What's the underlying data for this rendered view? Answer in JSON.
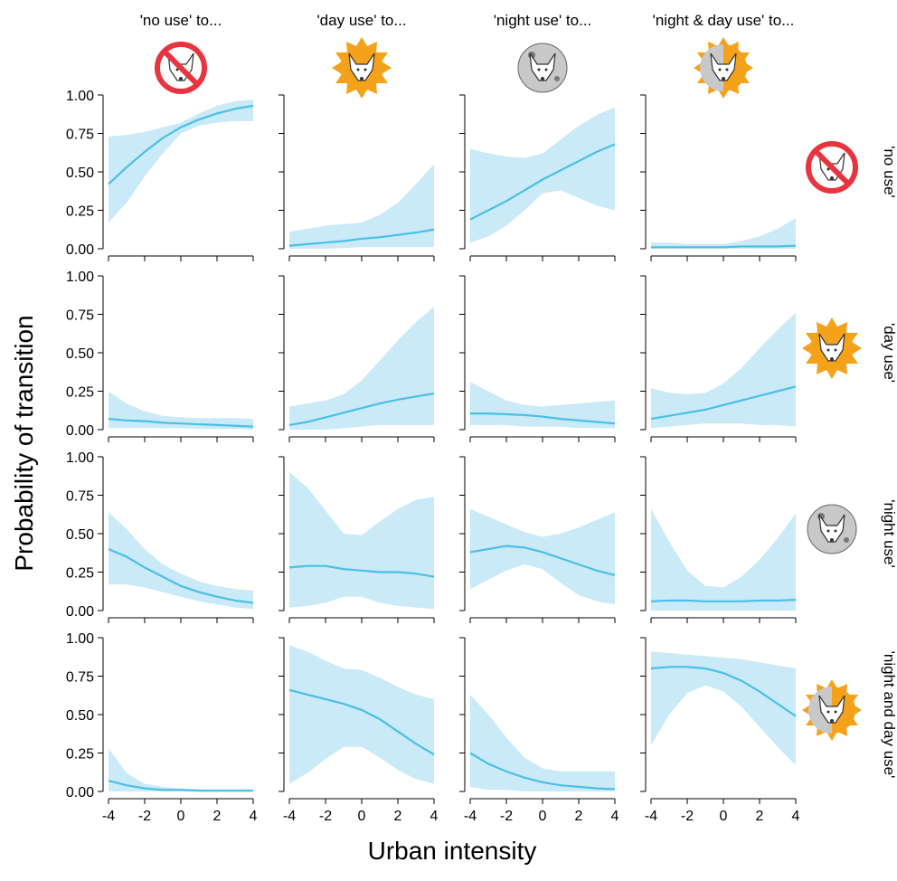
{
  "chart_data": {
    "type": "line",
    "x_label": "Urban intensity",
    "y_label": "Probability of transition",
    "column_titles": [
      "'no use' to...",
      "'day use' to...",
      "'night use' to...",
      "'night & day use' to..."
    ],
    "row_labels": [
      "'no use'",
      "'day use'",
      "'night use'",
      "'night and day use'"
    ],
    "xlim": [
      -4,
      4
    ],
    "xticks": [
      -4,
      -2,
      0,
      2,
      4
    ],
    "ylim": [
      0,
      1
    ],
    "yticks": [
      {
        "value": 0,
        "label": "0.00"
      },
      {
        "value": 0.25,
        "label": "0.25"
      },
      {
        "value": 0.5,
        "label": "0.50"
      },
      {
        "value": 0.75,
        "label": "0.75"
      },
      {
        "value": 1,
        "label": "1.00"
      }
    ],
    "color": "#4bbfe6",
    "band_color": "#c9eaf6",
    "x": [
      -4,
      -3,
      -2,
      -1,
      0,
      1,
      2,
      3,
      4
    ],
    "panels": [
      [
        {
          "values": [
            0.42,
            0.53,
            0.63,
            0.72,
            0.79,
            0.84,
            0.88,
            0.91,
            0.93
          ],
          "lower": [
            0.17,
            0.3,
            0.47,
            0.62,
            0.75,
            0.8,
            0.82,
            0.83,
            0.83
          ],
          "upper": [
            0.73,
            0.74,
            0.76,
            0.79,
            0.82,
            0.88,
            0.93,
            0.96,
            0.97
          ]
        },
        {
          "values": [
            0.02,
            0.03,
            0.04,
            0.05,
            0.065,
            0.075,
            0.09,
            0.105,
            0.125
          ],
          "lower": [
            0,
            0,
            0,
            0.005,
            0.01,
            0.01,
            0.01,
            0.01,
            0.01
          ],
          "upper": [
            0.11,
            0.13,
            0.15,
            0.16,
            0.17,
            0.22,
            0.3,
            0.42,
            0.55
          ]
        },
        {
          "values": [
            0.19,
            0.25,
            0.31,
            0.38,
            0.45,
            0.51,
            0.57,
            0.63,
            0.68
          ],
          "lower": [
            0.04,
            0.08,
            0.15,
            0.25,
            0.36,
            0.38,
            0.33,
            0.28,
            0.25
          ],
          "upper": [
            0.65,
            0.62,
            0.6,
            0.59,
            0.62,
            0.71,
            0.8,
            0.87,
            0.92
          ]
        },
        {
          "values": [
            0.01,
            0.01,
            0.01,
            0.01,
            0.01,
            0.015,
            0.015,
            0.015,
            0.02
          ],
          "lower": [
            0,
            0,
            0,
            0,
            0,
            0,
            0,
            0,
            0
          ],
          "upper": [
            0.04,
            0.04,
            0.03,
            0.03,
            0.03,
            0.05,
            0.08,
            0.13,
            0.2
          ]
        }
      ],
      [
        {
          "values": [
            0.07,
            0.06,
            0.055,
            0.045,
            0.04,
            0.035,
            0.03,
            0.025,
            0.02
          ],
          "lower": [
            0.01,
            0.01,
            0.01,
            0.01,
            0.01,
            0.005,
            0.005,
            0.005,
            0
          ],
          "upper": [
            0.25,
            0.17,
            0.12,
            0.09,
            0.08,
            0.075,
            0.075,
            0.075,
            0.07
          ]
        },
        {
          "values": [
            0.03,
            0.05,
            0.08,
            0.11,
            0.14,
            0.17,
            0.195,
            0.215,
            0.235
          ],
          "lower": [
            0,
            0,
            0,
            0.01,
            0.02,
            0.03,
            0.03,
            0.03,
            0.03
          ],
          "upper": [
            0.15,
            0.17,
            0.19,
            0.23,
            0.32,
            0.45,
            0.58,
            0.7,
            0.8
          ]
        },
        {
          "values": [
            0.105,
            0.105,
            0.1,
            0.095,
            0.085,
            0.07,
            0.06,
            0.05,
            0.04
          ],
          "lower": [
            0.03,
            0.03,
            0.03,
            0.02,
            0.02,
            0.02,
            0.01,
            0.01,
            0.01
          ],
          "upper": [
            0.31,
            0.25,
            0.19,
            0.16,
            0.15,
            0.16,
            0.17,
            0.18,
            0.19
          ]
        },
        {
          "values": [
            0.07,
            0.09,
            0.11,
            0.13,
            0.16,
            0.19,
            0.22,
            0.25,
            0.28
          ],
          "lower": [
            0.01,
            0.02,
            0.03,
            0.04,
            0.04,
            0.04,
            0.03,
            0.03,
            0.02
          ],
          "upper": [
            0.27,
            0.24,
            0.23,
            0.24,
            0.3,
            0.4,
            0.53,
            0.65,
            0.76
          ]
        }
      ],
      [
        {
          "values": [
            0.4,
            0.35,
            0.28,
            0.22,
            0.16,
            0.12,
            0.09,
            0.065,
            0.05
          ],
          "lower": [
            0.17,
            0.17,
            0.15,
            0.12,
            0.09,
            0.06,
            0.04,
            0.02,
            0.01
          ],
          "upper": [
            0.64,
            0.53,
            0.4,
            0.3,
            0.24,
            0.19,
            0.16,
            0.14,
            0.13
          ]
        },
        {
          "values": [
            0.28,
            0.29,
            0.29,
            0.27,
            0.26,
            0.25,
            0.25,
            0.24,
            0.22
          ],
          "lower": [
            0.02,
            0.03,
            0.05,
            0.09,
            0.09,
            0.05,
            0.03,
            0.02,
            0.01
          ],
          "upper": [
            0.9,
            0.8,
            0.65,
            0.5,
            0.49,
            0.58,
            0.66,
            0.72,
            0.74
          ]
        },
        {
          "values": [
            0.38,
            0.4,
            0.42,
            0.41,
            0.38,
            0.34,
            0.3,
            0.26,
            0.23
          ],
          "lower": [
            0.14,
            0.2,
            0.26,
            0.3,
            0.27,
            0.18,
            0.1,
            0.06,
            0.04
          ],
          "upper": [
            0.66,
            0.61,
            0.56,
            0.51,
            0.48,
            0.5,
            0.54,
            0.59,
            0.64
          ]
        },
        {
          "values": [
            0.06,
            0.065,
            0.065,
            0.06,
            0.06,
            0.06,
            0.065,
            0.065,
            0.07
          ],
          "lower": [
            0,
            0,
            0,
            0,
            0,
            0,
            0,
            0,
            0
          ],
          "upper": [
            0.66,
            0.45,
            0.26,
            0.16,
            0.15,
            0.22,
            0.33,
            0.47,
            0.63
          ]
        }
      ],
      [
        {
          "values": [
            0.07,
            0.04,
            0.02,
            0.01,
            0.01,
            0.005,
            0.005,
            0.005,
            0.005
          ],
          "lower": [
            0,
            0,
            0,
            0,
            0,
            0,
            0,
            0,
            0
          ],
          "upper": [
            0.28,
            0.12,
            0.05,
            0.03,
            0.02,
            0.015,
            0.01,
            0.01,
            0.01
          ]
        },
        {
          "values": [
            0.66,
            0.63,
            0.6,
            0.57,
            0.53,
            0.47,
            0.39,
            0.31,
            0.24
          ],
          "lower": [
            0.05,
            0.12,
            0.21,
            0.29,
            0.29,
            0.22,
            0.14,
            0.08,
            0.05
          ],
          "upper": [
            0.95,
            0.91,
            0.85,
            0.8,
            0.79,
            0.74,
            0.68,
            0.63,
            0.6
          ]
        },
        {
          "values": [
            0.25,
            0.18,
            0.13,
            0.09,
            0.06,
            0.04,
            0.03,
            0.02,
            0.015
          ],
          "lower": [
            0.03,
            0.01,
            0.01,
            0,
            0,
            0,
            0,
            0,
            0
          ],
          "upper": [
            0.63,
            0.5,
            0.35,
            0.22,
            0.15,
            0.13,
            0.13,
            0.13,
            0.13
          ]
        },
        {
          "values": [
            0.8,
            0.81,
            0.81,
            0.8,
            0.77,
            0.72,
            0.65,
            0.57,
            0.49
          ],
          "lower": [
            0.3,
            0.5,
            0.64,
            0.69,
            0.65,
            0.55,
            0.42,
            0.29,
            0.17
          ],
          "upper": [
            0.91,
            0.9,
            0.89,
            0.88,
            0.87,
            0.86,
            0.84,
            0.82,
            0.8
          ]
        }
      ]
    ]
  }
}
